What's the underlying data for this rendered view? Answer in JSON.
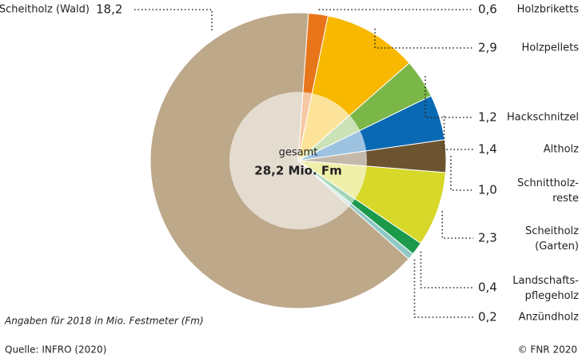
{
  "chart_data": {
    "type": "pie",
    "categories": [
      "Scheitholz (Wald)",
      "Holzbriketts",
      "Holzpellets",
      "Hackschnitzel",
      "Altholz",
      "Schnittholz-\nreste",
      "Scheitholz\n(Garten)",
      "Landschafts-\npflegeholz",
      "Anzündholz"
    ],
    "values": [
      18.2,
      0.6,
      2.9,
      1.2,
      1.4,
      1.0,
      2.3,
      0.4,
      0.2
    ],
    "value_labels": [
      "18,2",
      "0,6",
      "2,9",
      "1,2",
      "1,4",
      "1,0",
      "2,3",
      "0,4",
      "0,2"
    ],
    "colors": [
      "#bda88a",
      "#e8751a",
      "#f8b800",
      "#7ab648",
      "#0a69b3",
      "#6d5431",
      "#d7d82a",
      "#1a9a4a",
      "#8fc9c6"
    ],
    "total_caption": "gesamt",
    "total": {
      "value": 28.2,
      "label": "28,2 Mio. Fm"
    },
    "note": "Angaben für 2018 in Mio. Festmeter (Fm)",
    "source": "Quelle: INFRO (2020)",
    "copyright": "© FNR 2020"
  }
}
